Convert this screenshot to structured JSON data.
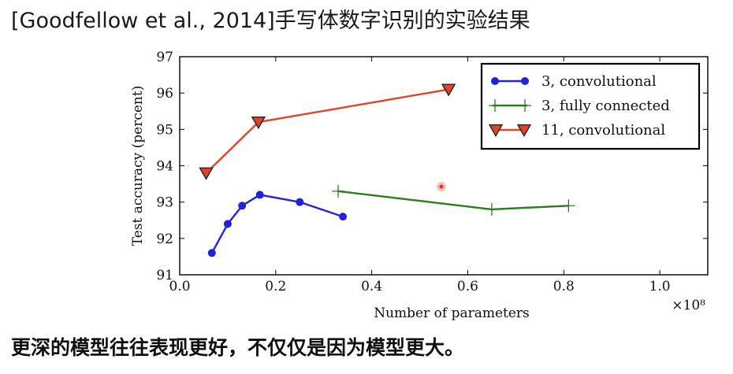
{
  "slide_title": "[Goodfellow et al., 2014]手写体数字识别的实验结果",
  "caption": "更深的模型往往表现更好，不仅仅是因为模型更大。",
  "chart_data": {
    "type": "line",
    "title": "",
    "xlabel": "Number of parameters",
    "ylabel": "Test accuracy (percent)",
    "x_multiplier": "×10⁸",
    "xlim": [
      0.0,
      1.1
    ],
    "ylim": [
      91,
      97
    ],
    "x_ticks": [
      "0.0",
      "0.2",
      "0.4",
      "0.6",
      "0.8",
      "1.0"
    ],
    "y_ticks": [
      "91",
      "92",
      "93",
      "94",
      "95",
      "96",
      "97"
    ],
    "grid": false,
    "legend_position": "top-right",
    "series": [
      {
        "name": "3, convolutional",
        "color": "#2222dd",
        "marker": "circle",
        "x": [
          0.067,
          0.1,
          0.13,
          0.167,
          0.25,
          0.34
        ],
        "y": [
          91.6,
          92.4,
          92.9,
          93.2,
          93.0,
          92.6
        ]
      },
      {
        "name": "3, fully connected",
        "color": "#2e7d1e",
        "marker": "plus",
        "x": [
          0.33,
          0.65,
          0.81
        ],
        "y": [
          93.3,
          92.8,
          92.9
        ]
      },
      {
        "name": "11, convolutional",
        "color": "#e0442a",
        "marker": "triangle-down",
        "x": [
          0.055,
          0.164,
          0.56
        ],
        "y": [
          93.8,
          95.2,
          96.1
        ]
      }
    ]
  }
}
